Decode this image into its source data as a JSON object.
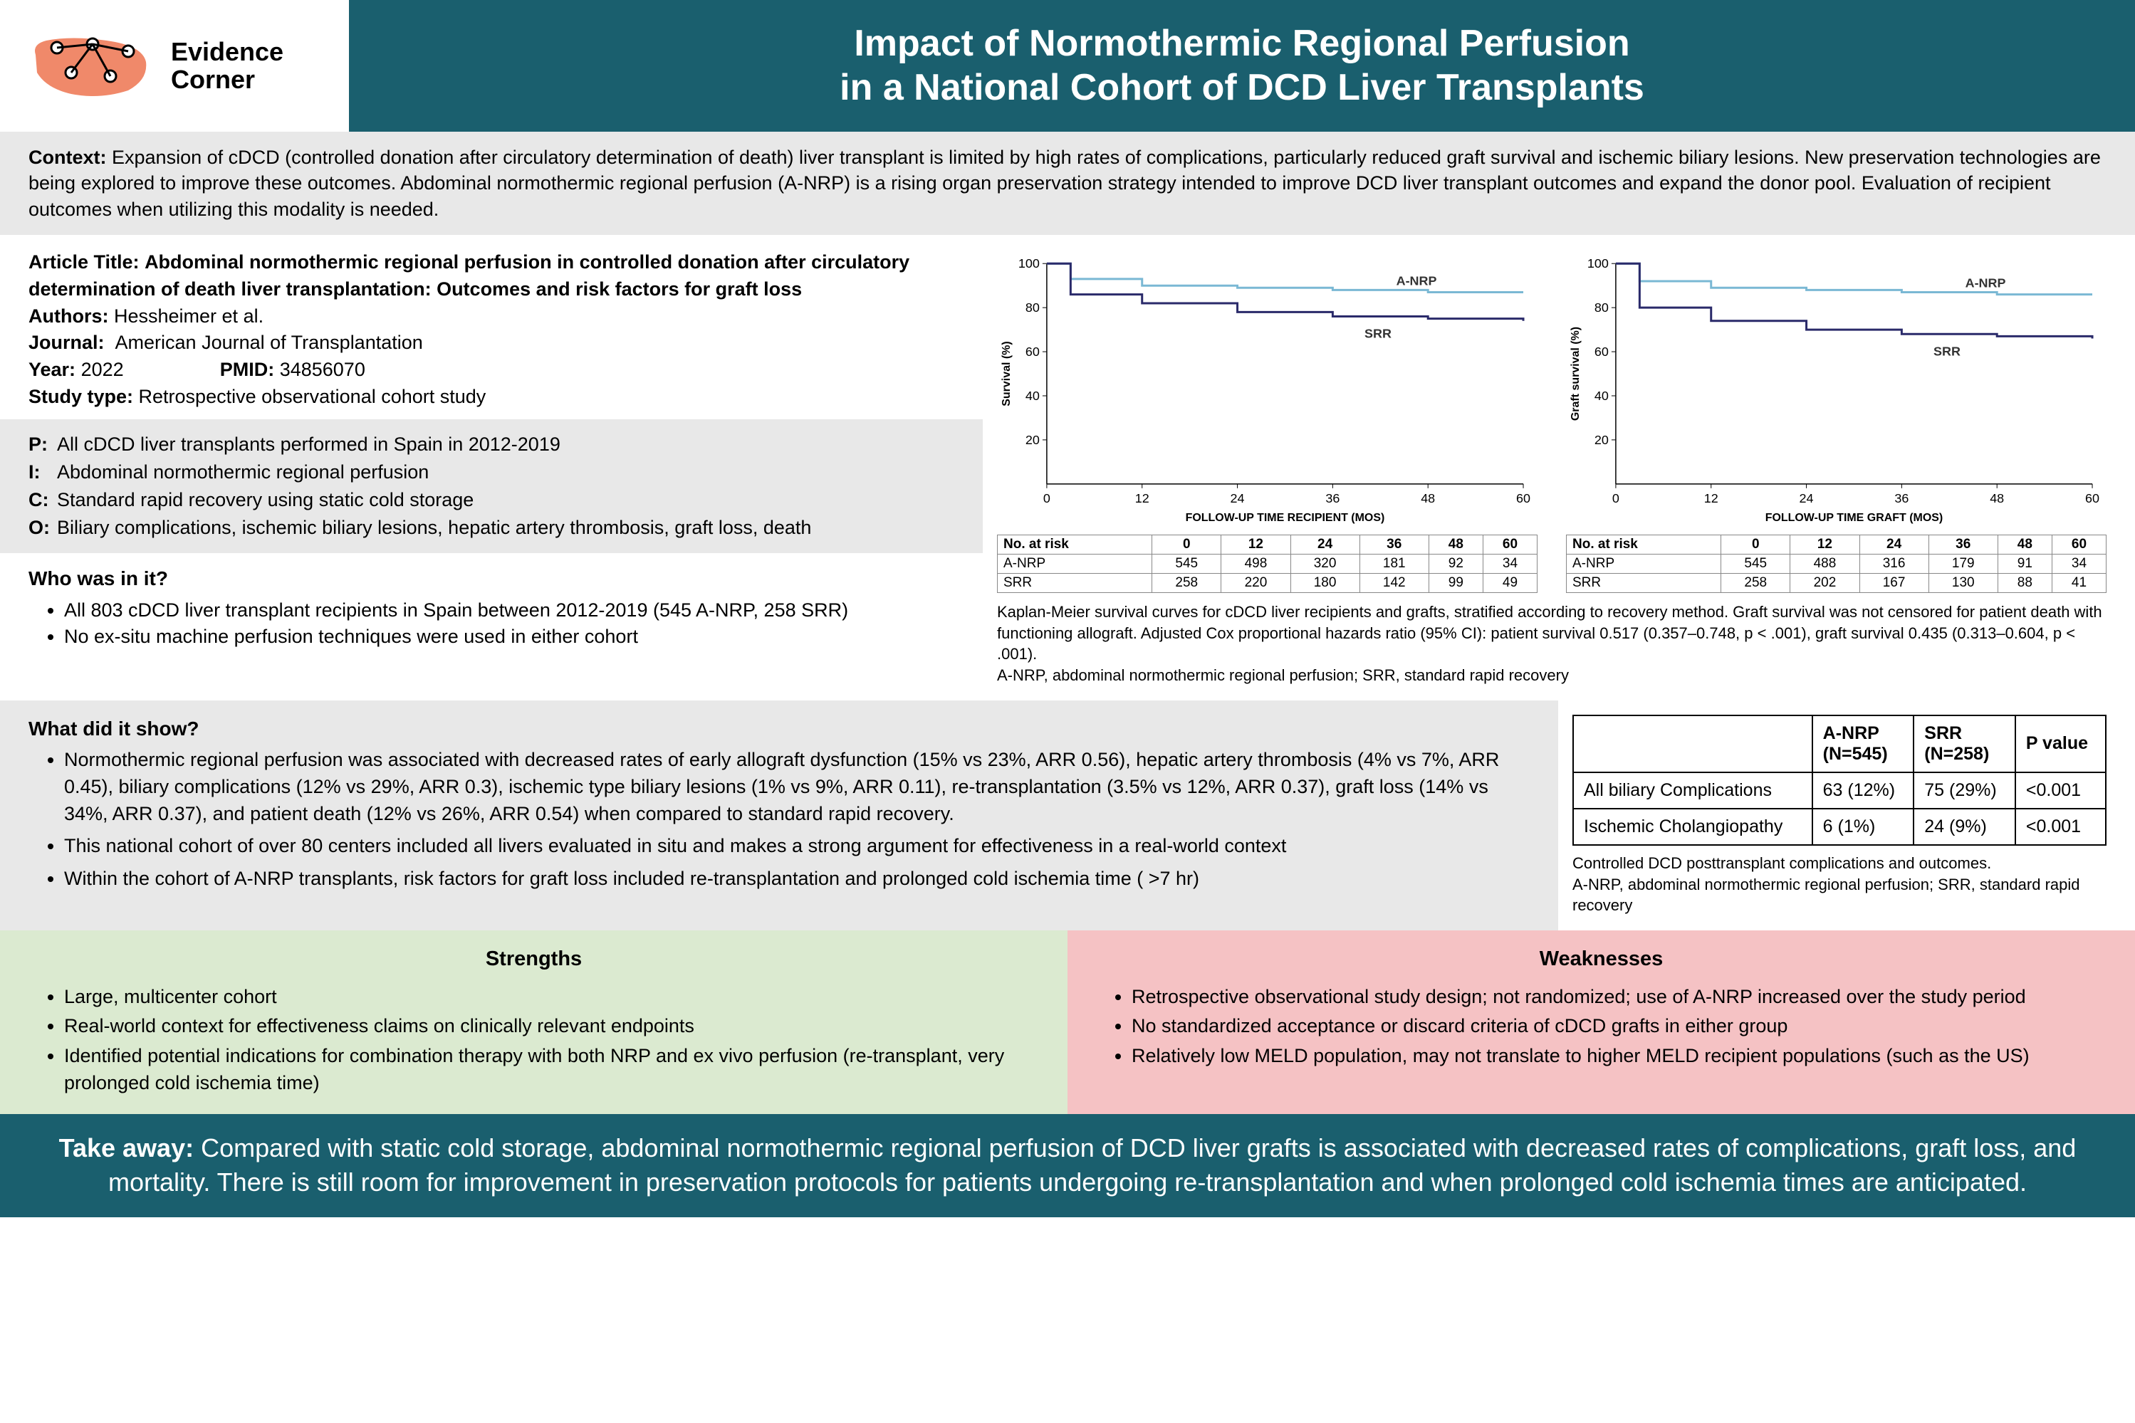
{
  "brand": {
    "line1": "Evidence",
    "line2": "Corner",
    "logo_bg": "#f0896a",
    "logo_stroke": "#000"
  },
  "colors": {
    "header_bg": "#1a5f6e",
    "context_bg": "#e8e8e8",
    "strengths_bg": "#dbead0",
    "weaknesses_bg": "#f5c2c4",
    "chart_line1": "#7ab8d4",
    "chart_line2": "#2a2a6a"
  },
  "title": "Impact of Normothermic Regional Perfusion\nin a National Cohort of DCD Liver Transplants",
  "context": {
    "label": "Context:",
    "text": "Expansion of cDCD (controlled donation after circulatory determination of death) liver transplant is limited by high rates of complications, particularly reduced graft survival and ischemic biliary lesions. New preservation technologies are being explored to improve these outcomes. Abdominal normothermic regional perfusion (A-NRP) is a rising organ preservation strategy intended to improve DCD liver transplant outcomes and expand the donor pool. Evaluation of recipient outcomes when utilizing this modality is needed."
  },
  "article": {
    "title_label": "Article Title:",
    "title": "Abdominal normothermic regional perfusion in controlled donation after circulatory determination of death liver transplantation: Outcomes and risk factors for graft loss",
    "authors_label": "Authors:",
    "authors": "Hessheimer et al.",
    "journal_label": "Journal:",
    "journal": "American Journal of Transplantation",
    "year_label": "Year:",
    "year": "2022",
    "pmid_label": "PMID:",
    "pmid": "34856070",
    "type_label": "Study type:",
    "type": "Retrospective observational cohort study"
  },
  "pico": {
    "p_label": "P:",
    "p": "All cDCD liver transplants performed in Spain in 2012-2019",
    "i_label": "I:",
    "i": "Abdominal normothermic regional perfusion",
    "c_label": "C:",
    "c": "Standard rapid recovery using static cold storage",
    "o_label": "O:",
    "o": "Biliary complications, ischemic biliary lesions, hepatic artery thrombosis, graft loss, death"
  },
  "who": {
    "heading": "Who was in it?",
    "items": [
      "All 803 cDCD liver transplant recipients in Spain between 2012-2019 (545 A-NRP, 258 SRR)",
      "No ex-situ machine perfusion techniques were used in either cohort"
    ]
  },
  "charts": {
    "chart1": {
      "ylabel": "Survival (%)",
      "xlabel": "FOLLOW-UP TIME RECIPIENT (MOS)",
      "label1": "A-NRP",
      "label2": "SRR",
      "ylim": [
        0,
        100
      ],
      "yticks": [
        20,
        40,
        60,
        80,
        100
      ],
      "xticks": [
        0,
        12,
        24,
        36,
        48,
        60
      ],
      "series1": {
        "color": "#7ab8d4",
        "x": [
          0,
          3,
          12,
          24,
          36,
          48,
          60
        ],
        "y": [
          100,
          93,
          90,
          89,
          88,
          87,
          87
        ]
      },
      "series2": {
        "color": "#2a2a6a",
        "x": [
          0,
          3,
          12,
          24,
          36,
          48,
          60
        ],
        "y": [
          100,
          86,
          82,
          78,
          76,
          75,
          74
        ]
      }
    },
    "chart2": {
      "ylabel": "Graft survival (%)",
      "xlabel": "FOLLOW-UP TIME GRAFT (MOS)",
      "label1": "A-NRP",
      "label2": "SRR",
      "ylim": [
        0,
        100
      ],
      "yticks": [
        20,
        40,
        60,
        80,
        100
      ],
      "xticks": [
        0,
        12,
        24,
        36,
        48,
        60
      ],
      "series1": {
        "color": "#7ab8d4",
        "x": [
          0,
          3,
          12,
          24,
          36,
          48,
          60
        ],
        "y": [
          100,
          92,
          89,
          88,
          87,
          86,
          86
        ]
      },
      "series2": {
        "color": "#2a2a6a",
        "x": [
          0,
          3,
          12,
          24,
          36,
          48,
          60
        ],
        "y": [
          100,
          80,
          74,
          70,
          68,
          67,
          66
        ]
      }
    },
    "caption": "Kaplan-Meier survival curves for cDCD liver recipients and grafts, stratified according to recovery method. Graft survival was not censored for patient death with functioning allograft. Adjusted Cox proportional hazards ratio (95% CI): patient survival 0.517 (0.357–0.748, p < .001), graft survival 0.435 (0.313–0.604, p < .001).\nA-NRP, abdominal normothermic regional perfusion; SRR, standard rapid recovery",
    "atrisk1": {
      "header": [
        "No. at risk",
        "0",
        "12",
        "24",
        "36",
        "48",
        "60"
      ],
      "rows": [
        [
          "A-NRP",
          "545",
          "498",
          "320",
          "181",
          "92",
          "34"
        ],
        [
          "SRR",
          "258",
          "220",
          "180",
          "142",
          "99",
          "49"
        ]
      ]
    },
    "atrisk2": {
      "header": [
        "No. at risk",
        "0",
        "12",
        "24",
        "36",
        "48",
        "60"
      ],
      "rows": [
        [
          "A-NRP",
          "545",
          "488",
          "316",
          "179",
          "91",
          "34"
        ],
        [
          "SRR",
          "258",
          "202",
          "167",
          "130",
          "88",
          "41"
        ]
      ]
    }
  },
  "results": {
    "heading": "What did it show?",
    "items": [
      "Normothermic regional perfusion was associated with decreased rates of early allograft dysfunction (15% vs 23%, ARR 0.56), hepatic artery thrombosis (4% vs 7%, ARR 0.45), biliary complications (12% vs 29%, ARR 0.3), ischemic type biliary lesions (1% vs 9%, ARR 0.11), re-transplantation (3.5% vs 12%, ARR 0.37), graft loss (14% vs 34%, ARR 0.37), and patient death (12% vs 26%, ARR 0.54) when compared to standard rapid recovery.",
      "This national cohort of over 80 centers included all livers evaluated in situ and makes a strong argument for effectiveness in a real-world context",
      "Within the cohort of A-NRP transplants, risk factors for graft loss included re-transplantation and prolonged cold ischemia time ( >7 hr)"
    ]
  },
  "comp_table": {
    "headers": [
      "",
      "A-NRP (N=545)",
      "SRR (N=258)",
      "P value"
    ],
    "rows": [
      [
        "All biliary Complications",
        "63 (12%)",
        "75 (29%)",
        "<0.001"
      ],
      [
        "Ischemic Cholangiopathy",
        "6 (1%)",
        "24 (9%)",
        "<0.001"
      ]
    ],
    "caption": "Controlled DCD posttransplant complications and outcomes.\nA-NRP, abdominal normothermic regional perfusion; SRR, standard rapid recovery"
  },
  "strengths": {
    "heading": "Strengths",
    "items": [
      "Large, multicenter cohort",
      "Real-world context for effectiveness claims on clinically relevant endpoints",
      "Identified potential indications for combination therapy with both NRP and ex vivo perfusion (re-transplant, very prolonged cold ischemia time)"
    ]
  },
  "weaknesses": {
    "heading": "Weaknesses",
    "items": [
      "Retrospective observational study design; not randomized; use of A-NRP increased over the study period",
      "No standardized acceptance or discard criteria of cDCD grafts in either group",
      "Relatively low MELD population, may not translate to higher MELD recipient populations (such as the US)"
    ]
  },
  "takeaway": {
    "label": "Take away:",
    "text": "Compared with static cold storage, abdominal normothermic regional perfusion of DCD liver grafts is associated with decreased rates of complications, graft loss, and mortality. There is still room for improvement in preservation protocols for patients undergoing re-transplantation and when prolonged cold ischemia times are anticipated."
  }
}
